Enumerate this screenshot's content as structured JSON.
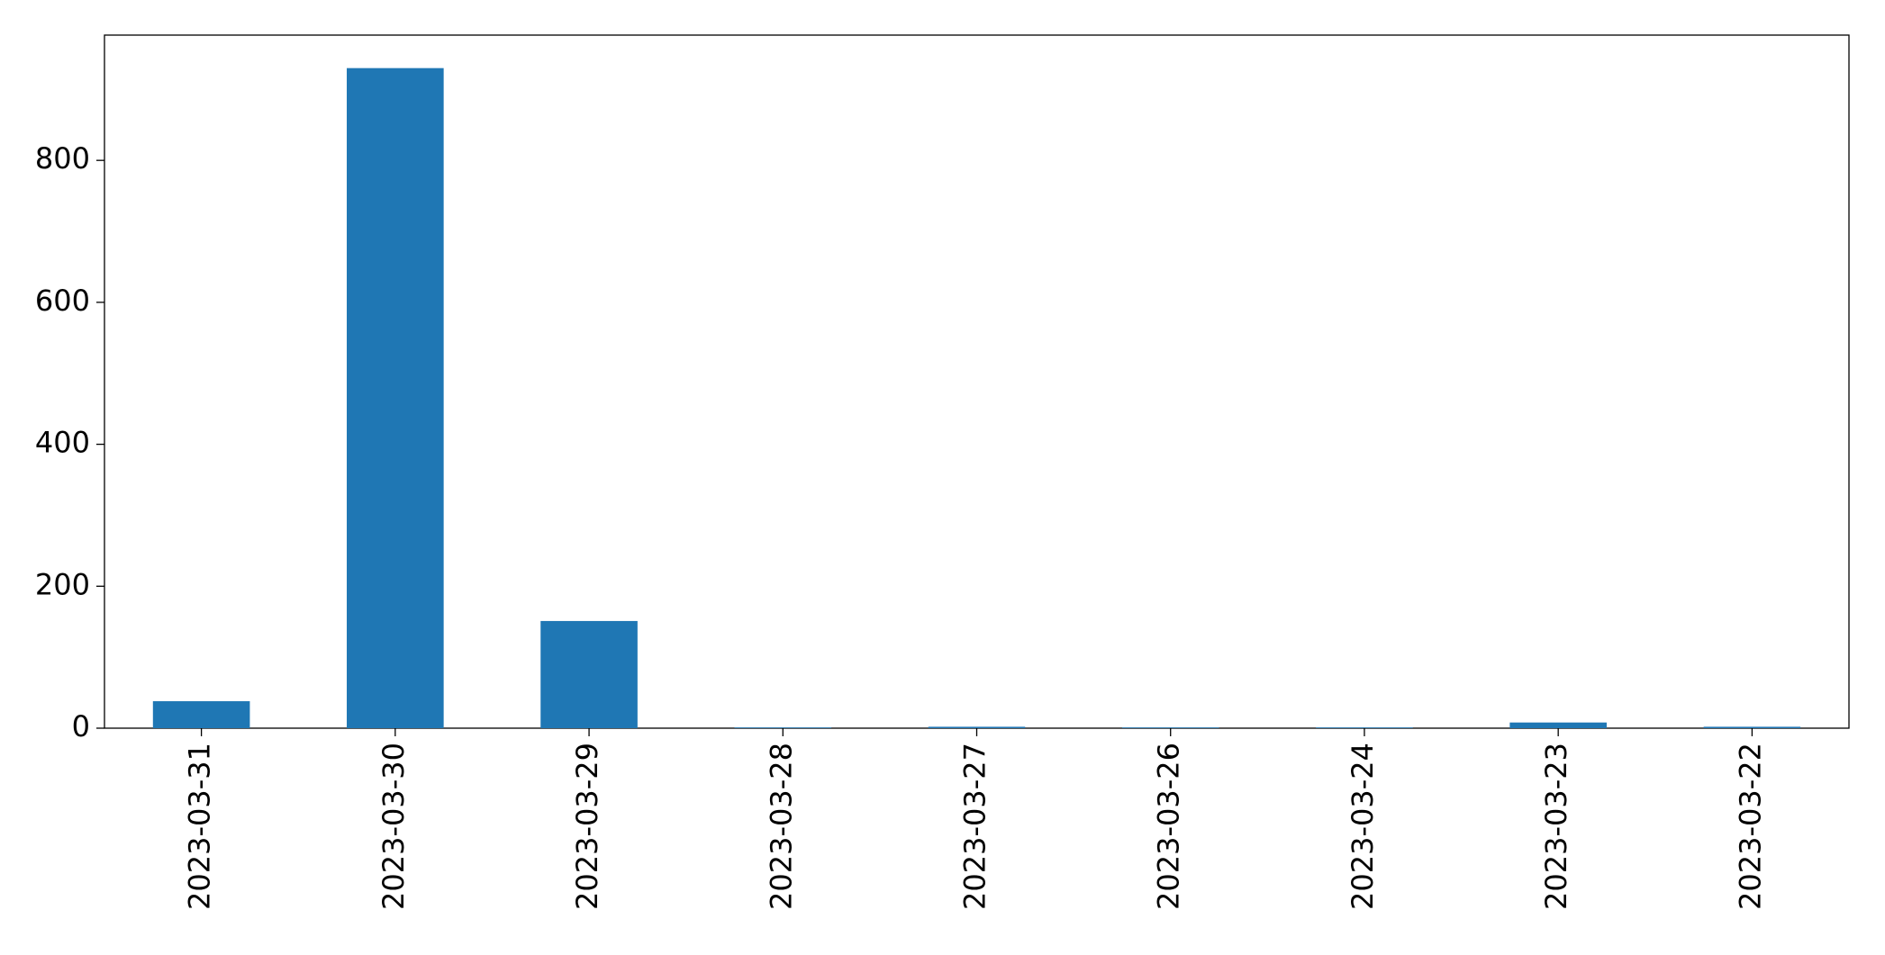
{
  "chart_data": {
    "type": "bar",
    "categories": [
      "2023-03-31",
      "2023-03-30",
      "2023-03-29",
      "2023-03-28",
      "2023-03-27",
      "2023-03-26",
      "2023-03-24",
      "2023-03-23",
      "2023-03-22"
    ],
    "values": [
      38,
      930,
      151,
      1,
      2,
      1,
      1,
      8,
      2
    ],
    "color": "#1f77b4",
    "ylim": [
      0,
      976.5
    ],
    "yticks": [
      0,
      200,
      400,
      600,
      800
    ],
    "grid": false
  }
}
